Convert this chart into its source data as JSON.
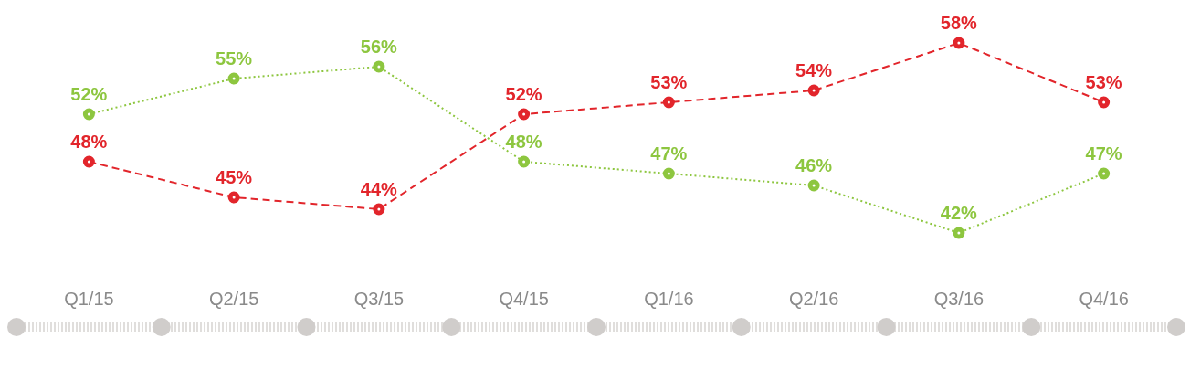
{
  "chart_data": {
    "type": "line",
    "categories": [
      "Q1/15",
      "Q2/15",
      "Q3/15",
      "Q4/15",
      "Q1/16",
      "Q2/16",
      "Q3/16",
      "Q4/16"
    ],
    "series": [
      {
        "color": "#8dc63f",
        "values": [
          52,
          55,
          56,
          48,
          47,
          46,
          42,
          47
        ],
        "line_style": "dotted",
        "value_labels": [
          "52%",
          "55%",
          "56%",
          "48%",
          "47%",
          "46%",
          "42%",
          "47%"
        ]
      },
      {
        "color": "#e2252b",
        "values": [
          48,
          45,
          44,
          52,
          53,
          54,
          58,
          53
        ],
        "line_style": "dashed",
        "value_labels": [
          "48%",
          "45%",
          "44%",
          "52%",
          "53%",
          "54%",
          "58%",
          "53%"
        ]
      }
    ],
    "tick_labels": "x",
    "marker": "circle",
    "grid": false,
    "legend": false
  }
}
